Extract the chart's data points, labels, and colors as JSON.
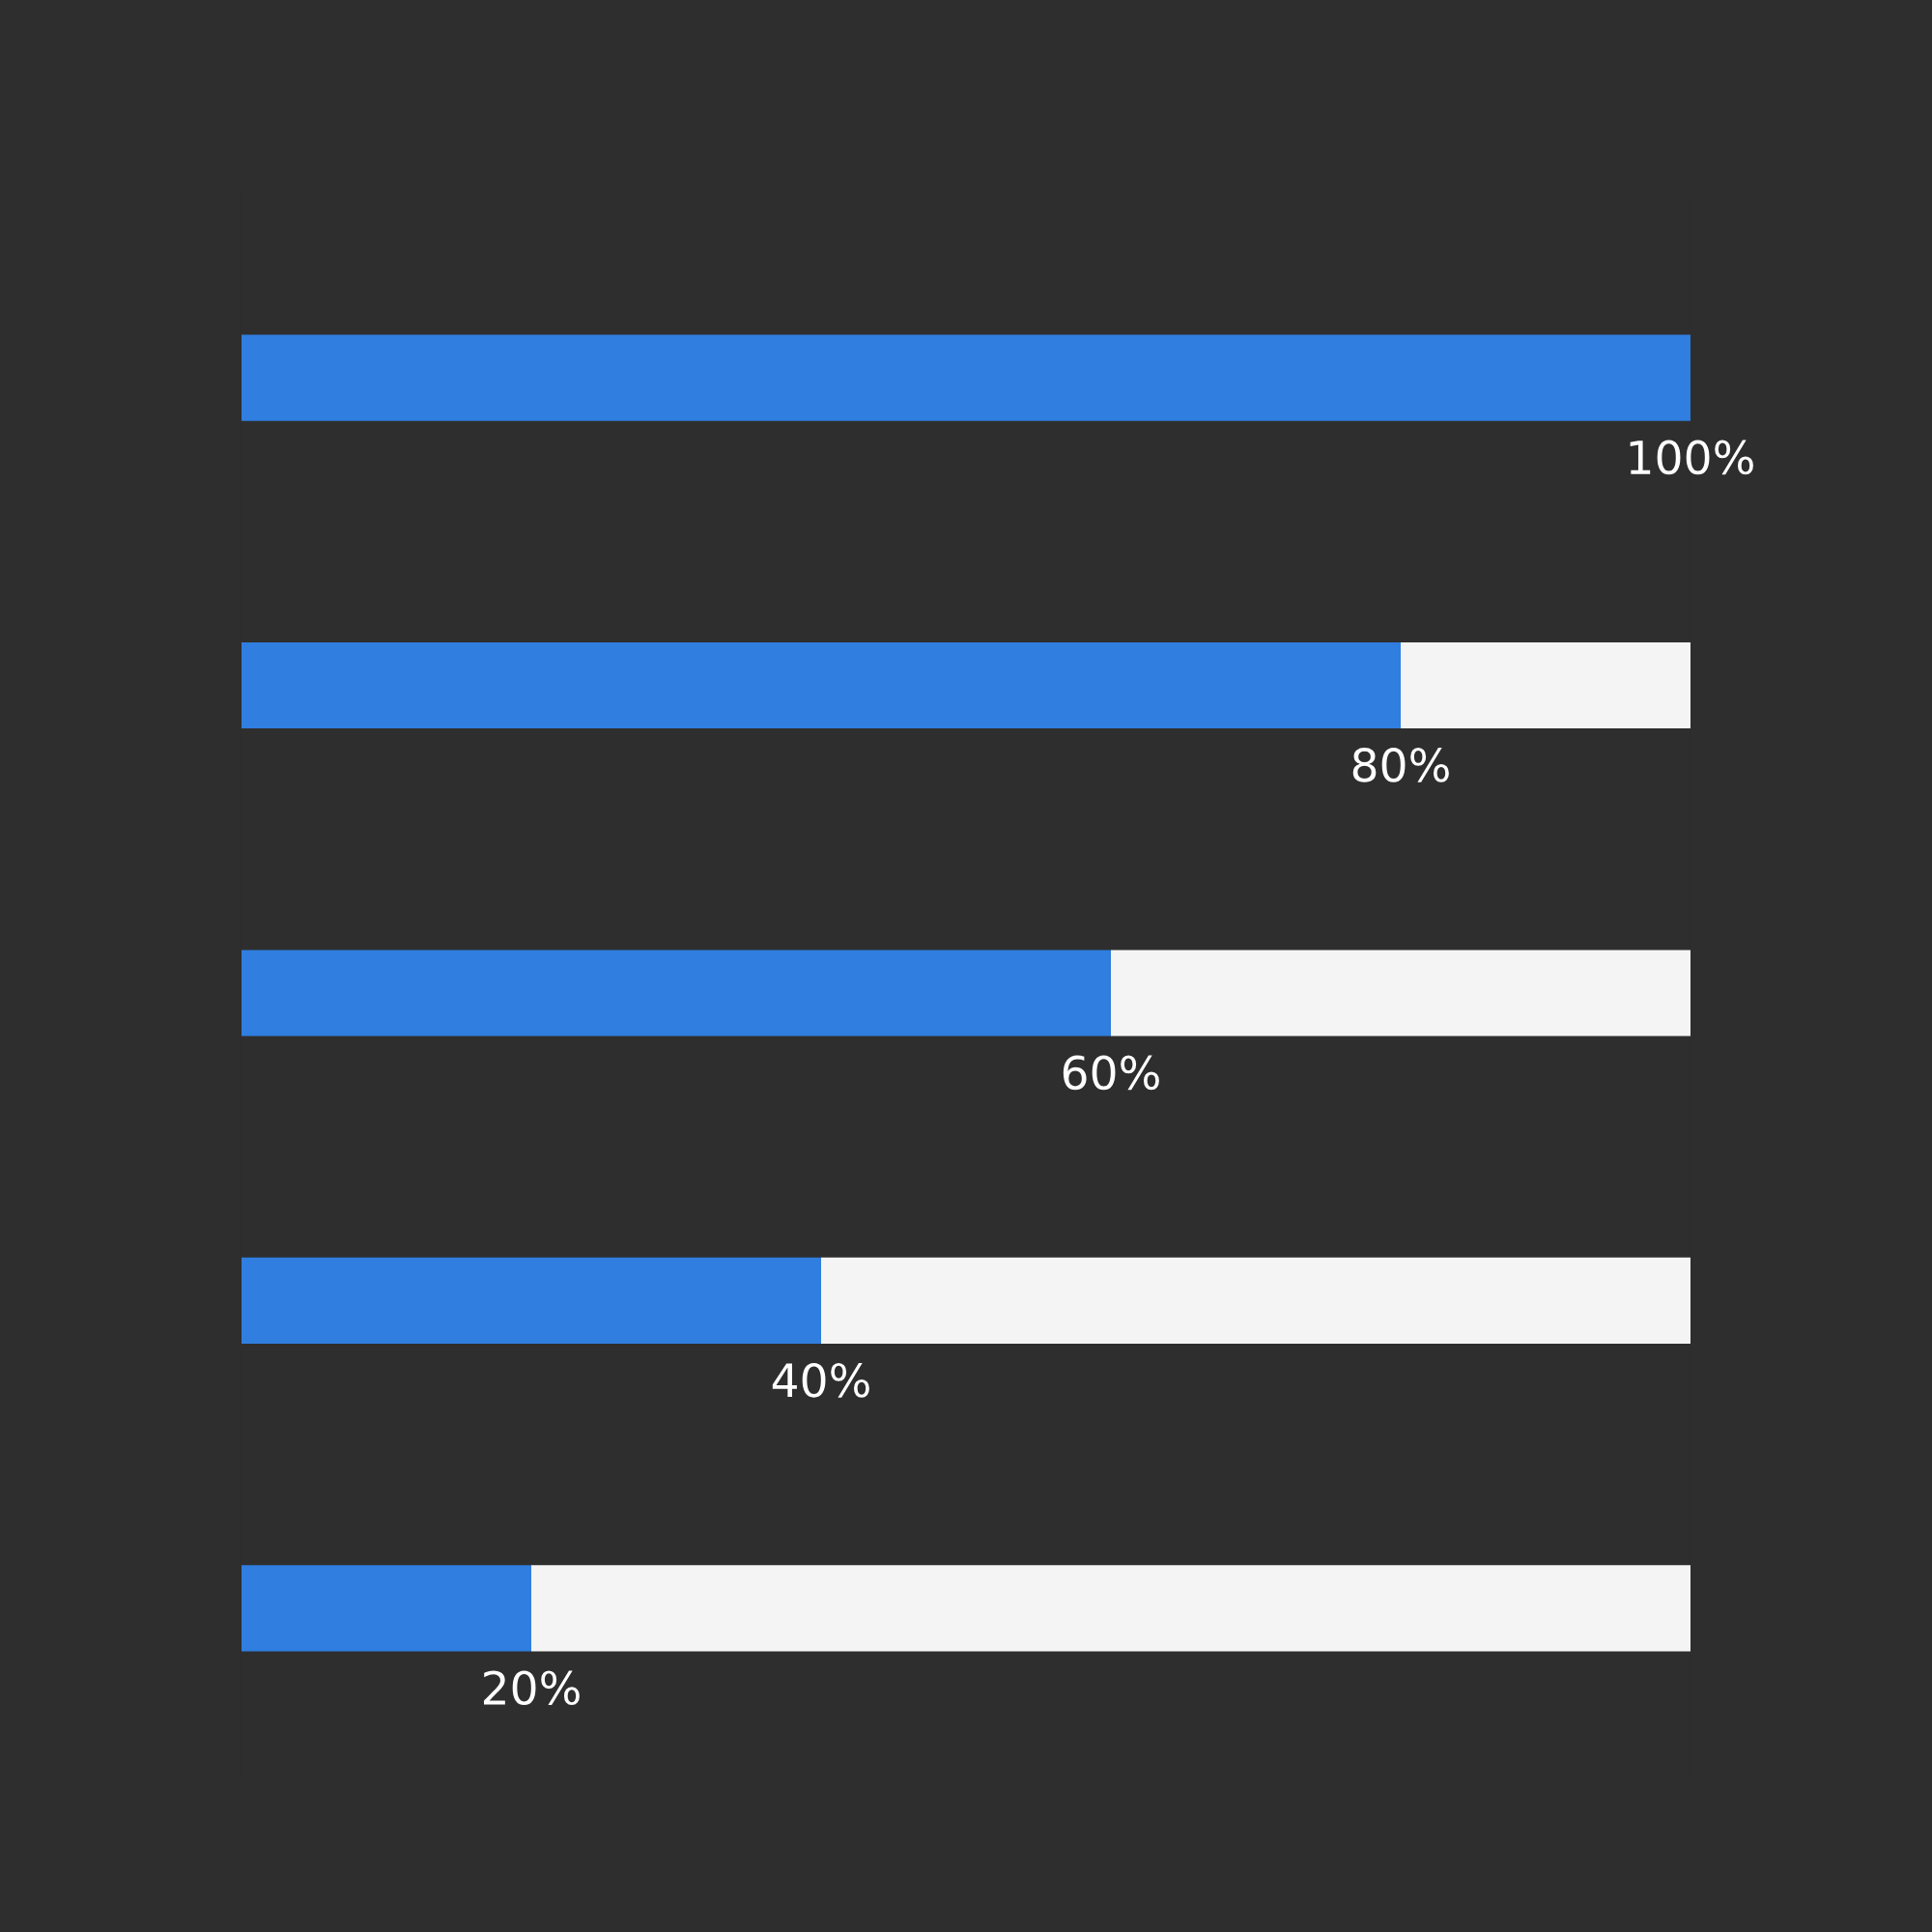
{
  "chart_data": {
    "type": "bar",
    "orientation": "horizontal",
    "stacked": true,
    "categories": [
      null,
      null,
      null,
      null,
      null
    ],
    "series": [
      {
        "color": "#2f7ee0",
        "values": [
          100,
          80,
          60,
          40,
          20
        ],
        "value_labels": [
          "100%",
          "80%",
          "60%",
          "40%",
          "20%"
        ]
      },
      {
        "color": "#f4f4f4",
        "values": [
          0,
          20,
          40,
          60,
          80
        ]
      }
    ],
    "xlim": [
      0,
      100
    ],
    "tick_labels": false,
    "grid": false,
    "legend": false
  }
}
